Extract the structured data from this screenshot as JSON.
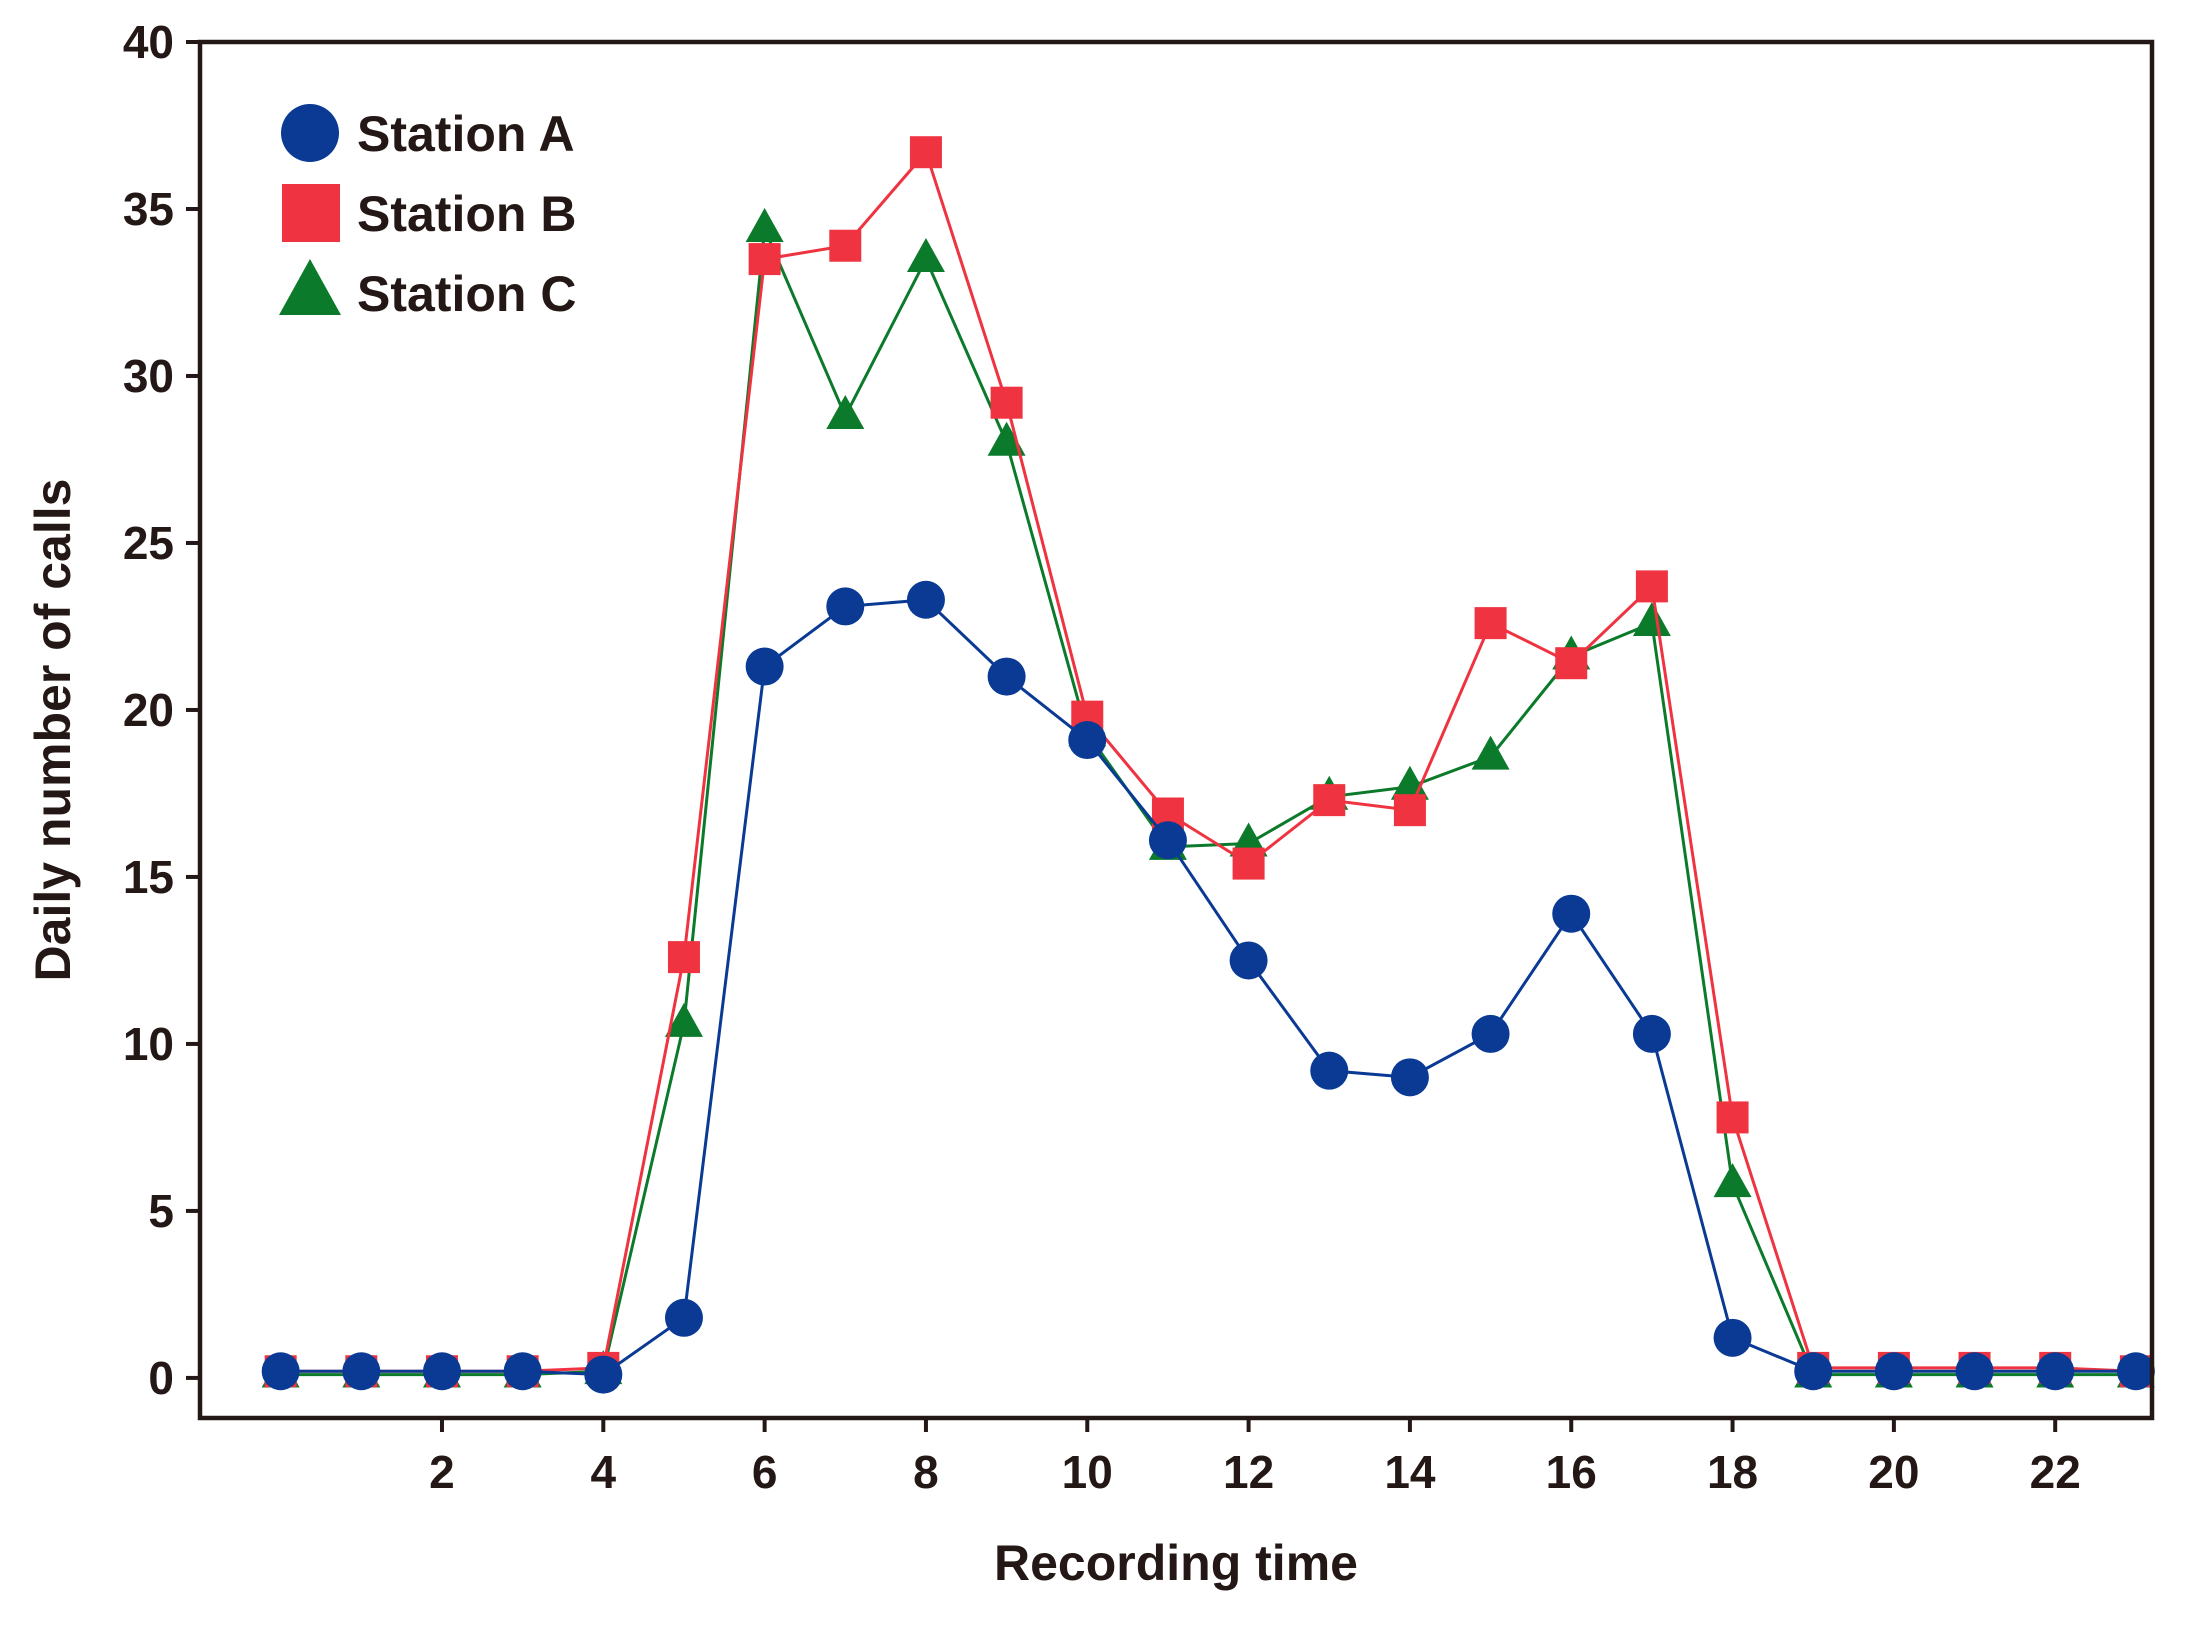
{
  "chart_data": {
    "type": "line",
    "title": "",
    "xlabel": "Recording time",
    "ylabel": "Daily number of calls",
    "xlim": [
      -1,
      23.2
    ],
    "ylim": [
      -1.2,
      40
    ],
    "xticks": [
      2,
      4,
      6,
      8,
      10,
      12,
      14,
      16,
      18,
      20,
      22
    ],
    "yticks": [
      0,
      5,
      10,
      15,
      20,
      25,
      30,
      35,
      40
    ],
    "grid": false,
    "legend_position": "top-left",
    "x": [
      0,
      1,
      2,
      3,
      4,
      5,
      6,
      7,
      8,
      9,
      10,
      11,
      12,
      13,
      14,
      15,
      16,
      17,
      18,
      19,
      20,
      21,
      22,
      23
    ],
    "series": [
      {
        "name": "Station A",
        "marker": "circle",
        "color": "#0a3a94",
        "values": [
          0.2,
          0.2,
          0.2,
          0.2,
          0.1,
          1.8,
          21.3,
          23.1,
          23.3,
          21.0,
          19.1,
          16.1,
          12.5,
          9.2,
          9.0,
          10.3,
          13.9,
          10.3,
          1.2,
          0.2,
          0.2,
          0.2,
          0.2,
          0.2
        ]
      },
      {
        "name": "Station B",
        "marker": "square",
        "color": "#ef3340",
        "values": [
          0.2,
          0.2,
          0.2,
          0.2,
          0.3,
          12.6,
          33.5,
          33.9,
          36.7,
          29.2,
          19.8,
          16.9,
          15.4,
          17.3,
          17.0,
          22.6,
          21.4,
          23.7,
          7.8,
          0.3,
          0.3,
          0.3,
          0.3,
          0.2
        ]
      },
      {
        "name": "Station C",
        "marker": "triangle",
        "color": "#0b7a2a",
        "values": [
          0.1,
          0.1,
          0.1,
          0.1,
          0.2,
          10.6,
          34.4,
          28.8,
          33.5,
          28.0,
          19.3,
          15.9,
          16.0,
          17.4,
          17.7,
          18.6,
          21.6,
          22.6,
          5.8,
          0.1,
          0.1,
          0.1,
          0.1,
          0.1
        ]
      }
    ]
  }
}
